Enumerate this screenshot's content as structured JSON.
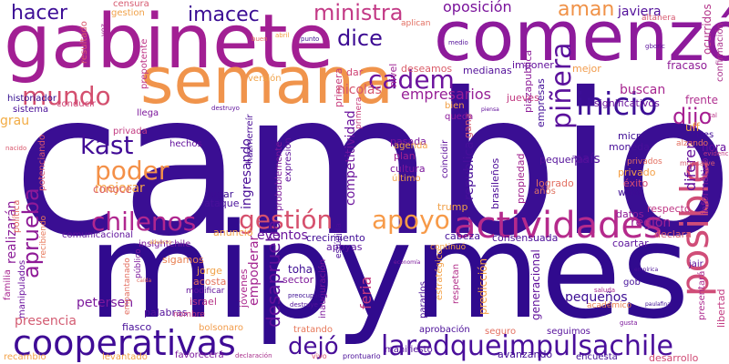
{
  "words": [
    {
      "text": "cambio",
      "color": "#3a0e93"
    },
    {
      "text": "mipymes",
      "color": "#300a8e"
    },
    {
      "text": "gabinete",
      "color": "#a21f93"
    },
    {
      "text": "comenzó",
      "color": "#8d1a9b"
    },
    {
      "text": "semana",
      "color": "#f0944c"
    },
    {
      "text": "cooperativas",
      "color": "#3f0b96"
    },
    {
      "text": "laredqueimpulsachile",
      "color": "#4a0f9b"
    },
    {
      "text": "actividades",
      "color": "#b52a8c"
    },
    {
      "text": "posible",
      "color": "#d04d78"
    },
    {
      "text": "gestión",
      "color": "#d6506d"
    },
    {
      "text": "apoyo",
      "color": "#f79a48"
    },
    {
      "text": "chilenos",
      "color": "#b0278f"
    },
    {
      "text": "poder",
      "color": "#f49048"
    },
    {
      "text": "kast",
      "color": "#410b96"
    },
    {
      "text": "mundo",
      "color": "#d4506f"
    },
    {
      "text": "cadem",
      "color": "#6c139e"
    },
    {
      "text": "inicio",
      "color": "#3c0f97"
    },
    {
      "text": "piñera",
      "color": "#5b119c"
    },
    {
      "text": "dijo",
      "color": "#a61f92"
    },
    {
      "text": "dejó",
      "color": "#480f99"
    },
    {
      "text": "dice",
      "color": "#3c0b93"
    },
    {
      "text": "hacer",
      "color": "#3e0f97"
    },
    {
      "text": "imacec",
      "color": "#3b0d94"
    },
    {
      "text": "ministra",
      "color": "#c33a86"
    },
    {
      "text": "oposición",
      "color": "#7a139b"
    },
    {
      "text": "aman",
      "color": "#f09248"
    },
    {
      "text": "aprueba",
      "color": "#8f1a97"
    },
    {
      "text": "desaprueba",
      "color": "#610f9a"
    },
    {
      "text": "presencia",
      "color": "#d35c72"
    },
    {
      "text": "empresarios",
      "color": "#961f96"
    },
    {
      "text": "mejorar",
      "color": "#f5a347"
    },
    {
      "text": "buscan",
      "color": "#a72690"
    },
    {
      "text": "país",
      "color": "#4f0f9b"
    },
    {
      "text": "región",
      "color": "#9c2296"
    },
    {
      "text": "eventos",
      "color": "#6a169c"
    },
    {
      "text": "pequeños",
      "color": "#3c0d93"
    },
    {
      "text": "feria",
      "color": "#c5397f"
    },
    {
      "text": "nicolás",
      "color": "#d6566e"
    },
    {
      "text": "republica",
      "color": "#470f99"
    },
    {
      "text": "competitividad",
      "color": "#6c149d"
    },
    {
      "text": "ingresando",
      "color": "#480c96"
    },
    {
      "text": "conoce",
      "color": "#dc6468"
    },
    {
      "text": "petersen",
      "color": "#7b189b"
    },
    {
      "text": "realizarán",
      "color": "#8b1c98"
    },
    {
      "text": "grau",
      "color": "#f2ac45"
    },
    {
      "text": "javiera",
      "color": "#52109a"
    },
    {
      "text": "fracaso",
      "color": "#8f1c97"
    },
    {
      "text": "ocurridos",
      "color": "#b4348a"
    },
    {
      "text": "confirmación",
      "color": "#a9308c"
    },
    {
      "text": "frente",
      "color": "#b03090"
    },
    {
      "text": "significativos",
      "color": "#6b159c"
    },
    {
      "text": "empresas",
      "color": "#420d97"
    },
    {
      "text": "piazapublica",
      "color": "#8b1c98"
    },
    {
      "text": "medianas",
      "color": "#54119a"
    },
    {
      "text": "imponer",
      "color": "#610f9b"
    },
    {
      "text": "deseamos",
      "color": "#db5e6a"
    },
    {
      "text": "nivel",
      "color": "#9e2394"
    },
    {
      "text": "primera",
      "color": "#c8407e"
    },
    {
      "text": "dar",
      "color": "#cf4677"
    },
    {
      "text": "mejor",
      "color": "#f19b4b"
    },
    {
      "text": "hora",
      "color": "#670f9d"
    },
    {
      "text": "uff",
      "color": "#f0a146"
    },
    {
      "text": "diferen",
      "color": "#640f9b"
    },
    {
      "text": "informático",
      "color": "#7a189c"
    },
    {
      "text": "éxito",
      "color": "#d34c74"
    },
    {
      "text": "moneda",
      "color": "#480f99"
    },
    {
      "text": "micro",
      "color": "#3e0c94"
    },
    {
      "text": "brasileños",
      "color": "#4e0e99"
    },
    {
      "text": "propiedad",
      "color": "#a0228f"
    },
    {
      "text": "privado",
      "color": "#f4a046"
    },
    {
      "text": "woke",
      "color": "#3d0c94"
    },
    {
      "text": "logrado",
      "color": "#e26e61"
    },
    {
      "text": "años",
      "color": "#e07664"
    },
    {
      "text": "consensuada",
      "color": "#4b0e99"
    },
    {
      "text": "respecto",
      "color": "#bf3685"
    },
    {
      "text": "declara",
      "color": "#d65a70"
    },
    {
      "text": "coartar",
      "color": "#5c129c"
    },
    {
      "text": "datos",
      "color": "#8f1c97"
    },
    {
      "text": "cabeza",
      "color": "#45109a"
    },
    {
      "text": "trump",
      "color": "#f0a048"
    },
    {
      "text": "crecimiento",
      "color": "#3f0b95"
    },
    {
      "text": "apoyas",
      "color": "#5c129c"
    },
    {
      "text": "toha",
      "color": "#3d0c94"
    },
    {
      "text": "sector",
      "color": "#7e189a"
    },
    {
      "text": "empoderar",
      "color": "#a2228f"
    },
    {
      "text": "jorge",
      "color": "#f0a34a"
    },
    {
      "text": "acosta",
      "color": "#e5735d"
    },
    {
      "text": "israel",
      "color": "#b73386"
    },
    {
      "text": "jóvenes",
      "color": "#ac298e"
    },
    {
      "text": "sigamos",
      "color": "#e88052"
    },
    {
      "text": "anunció",
      "color": "#f1a047"
    },
    {
      "text": "comunicacional",
      "color": "#5e119b"
    },
    {
      "text": "insightchile",
      "color": "#7c189b"
    },
    {
      "text": "lugar",
      "color": "#3c0d93"
    },
    {
      "text": "ataque",
      "color": "#48109a"
    },
    {
      "text": "hechos",
      "color": "#610f9b"
    },
    {
      "text": "privada",
      "color": "#c23a81"
    },
    {
      "text": "llega",
      "color": "#7c169b"
    },
    {
      "text": "sistema",
      "color": "#480c97"
    },
    {
      "text": "historiador",
      "color": "#300a8e"
    },
    {
      "text": "resultado",
      "color": "#d9566c"
    },
    {
      "text": "conducir",
      "color": "#cf4677"
    },
    {
      "text": "prepotente",
      "color": "#be3487"
    },
    {
      "text": "censura",
      "color": "#d65a70"
    },
    {
      "text": "gestion",
      "color": "#f0a148"
    },
    {
      "text": "versión",
      "color": "#f0a34a"
    },
    {
      "text": "potenciando",
      "color": "#d6566e"
    },
    {
      "text": "política",
      "color": "#e36d61"
    },
    {
      "text": "fiasco",
      "color": "#480f99"
    },
    {
      "text": "palabras",
      "color": "#54119a"
    },
    {
      "text": "modificar",
      "color": "#610f9b"
    },
    {
      "text": "nombre",
      "color": "#c23a81"
    },
    {
      "text": "bolsonaro",
      "color": "#f29c4a"
    },
    {
      "text": "favorecerá",
      "color": "#7a159b"
    },
    {
      "text": "levantado",
      "color": "#f1a046"
    },
    {
      "text": "recambio",
      "color": "#f3a248"
    },
    {
      "text": "tratando",
      "color": "#e7785a"
    },
    {
      "text": "inauguración",
      "color": "#7b169b"
    },
    {
      "text": "estratégico",
      "color": "#f3a046"
    },
    {
      "text": "pararlos",
      "color": "#480c96"
    },
    {
      "text": "aprobación",
      "color": "#4b0e98"
    },
    {
      "text": "respetan",
      "color": "#b22f8a"
    },
    {
      "text": "predicción",
      "color": "#f3a146"
    },
    {
      "text": "generacional",
      "color": "#60119b"
    },
    {
      "text": "seguimos",
      "color": "#56109b"
    },
    {
      "text": "manifiesto",
      "color": "#52109a"
    },
    {
      "text": "avanzando",
      "color": "#410b96"
    },
    {
      "text": "encuesta",
      "color": "#420d97"
    },
    {
      "text": "desarrollo",
      "color": "#d04a74"
    },
    {
      "text": "presentará",
      "color": "#ac298e"
    },
    {
      "text": "libertad",
      "color": "#c23a81"
    },
    {
      "text": "jair",
      "color": "#5c129c"
    },
    {
      "text": "gob",
      "color": "#45109a"
    },
    {
      "text": "seguro",
      "color": "#e36f60"
    },
    {
      "text": "estúpida",
      "color": "#480c97"
    },
    {
      "text": "probablemente",
      "color": "#7c189b"
    },
    {
      "text": "expresión",
      "color": "#5e119b"
    },
    {
      "text": "cultura",
      "color": "#7b169b"
    },
    {
      "text": "plan",
      "color": "#a0228f"
    },
    {
      "text": "pasada",
      "color": "#7c169b"
    },
    {
      "text": "pequeñas",
      "color": "#54119a"
    },
    {
      "text": "jueves",
      "color": "#c23a81"
    },
    {
      "text": "gana",
      "color": "#d35c72"
    },
    {
      "text": "agenda",
      "color": "#f3a346"
    },
    {
      "text": "coincidir",
      "color": "#5e119b"
    },
    {
      "text": "queda",
      "color": "#8d1a9b"
    },
    {
      "text": "bien",
      "color": "#f1a046"
    },
    {
      "text": "hazmerreír",
      "color": "#480c96"
    },
    {
      "text": "privados",
      "color": "#e36f60"
    },
    {
      "text": "primera",
      "color": "#c8407e"
    },
    {
      "text": "manipulados",
      "color": "#6c139e"
    },
    {
      "text": "familia",
      "color": "#a72690"
    },
    {
      "text": "recibiendo",
      "color": "#e7785a"
    },
    {
      "text": "empantanado",
      "color": "#e36f60"
    },
    {
      "text": "último",
      "color": "#f3a146"
    },
    {
      "text": "vivo",
      "color": "#d6566e"
    },
    {
      "text": "declaración",
      "color": "#a9308c"
    },
    {
      "text": "prontuario",
      "color": "#480c97"
    },
    {
      "text": "aplican",
      "color": "#e26e61"
    },
    {
      "text": "evidencia",
      "color": "#c23a81"
    },
    {
      "text": "altanera",
      "color": "#d6566e"
    },
    {
      "text": "punto",
      "color": "#3c0d93"
    },
    {
      "text": "medio",
      "color": "#54119a"
    },
    {
      "text": "voz",
      "color": "#a0228f"
    },
    {
      "text": "abril",
      "color": "#f1a046"
    },
    {
      "text": "público",
      "color": "#7b189b"
    },
    {
      "text": "destruyo",
      "color": "#5e119b"
    },
    {
      "text": "alzando",
      "color": "#e36f60"
    },
    {
      "text": "tres",
      "color": "#410b96"
    },
    {
      "text": "monsalve",
      "color": "#d65a70"
    },
    {
      "text": "empírica",
      "color": "#480c96"
    },
    {
      "text": "gborlc",
      "color": "#5c129c"
    },
    {
      "text": "académico",
      "color": "#e88052"
    },
    {
      "text": "gusta",
      "color": "#7b169b"
    },
    {
      "text": "saluda",
      "color": "#a72690"
    },
    {
      "text": "preocupado",
      "color": "#3c0d93"
    },
    {
      "text": "destruye",
      "color": "#52109a"
    },
    {
      "text": "economía",
      "color": "#7c189b"
    },
    {
      "text": "tal",
      "color": "#b73386"
    },
    {
      "text": "paulafinal",
      "color": "#3c0d93"
    },
    {
      "text": "continuó",
      "color": "#f3a046"
    },
    {
      "text": "piensa",
      "color": "#610f9b"
    },
    {
      "text": "nacido",
      "color": "#d9566c"
    },
    {
      "text": "caída",
      "color": "#e26e61"
    },
    {
      "text": "adverso",
      "color": "#f1a046"
    },
    {
      "text": "buen",
      "color": "#e36d61"
    }
  ]
}
